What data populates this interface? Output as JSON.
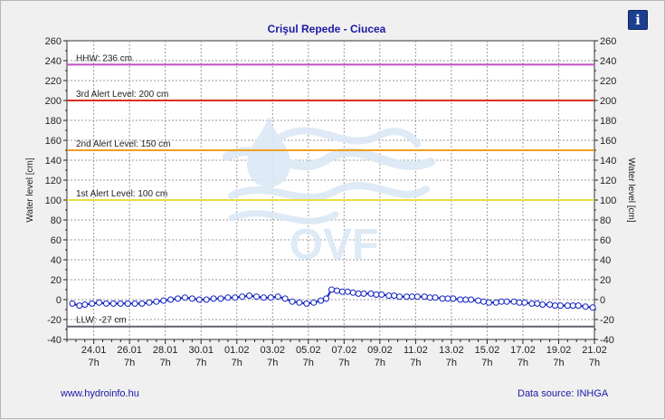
{
  "chart_data": {
    "type": "line",
    "title": "Crişul Repede - Ciucea",
    "ylabel": "Water level [cm]",
    "ylabel_right": "Water level [cm]",
    "ylim": [
      -40,
      260
    ],
    "yticks": [
      -40,
      -20,
      0,
      20,
      40,
      60,
      80,
      100,
      120,
      140,
      160,
      180,
      200,
      220,
      240,
      260
    ],
    "xlim": [
      0,
      29.5
    ],
    "x_ticks": [
      {
        "x": 1.5,
        "date": "24.01",
        "hour": "7h"
      },
      {
        "x": 3.5,
        "date": "26.01",
        "hour": "7h"
      },
      {
        "x": 5.5,
        "date": "28.01",
        "hour": "7h"
      },
      {
        "x": 7.5,
        "date": "30.01",
        "hour": "7h"
      },
      {
        "x": 9.5,
        "date": "01.02",
        "hour": "7h"
      },
      {
        "x": 11.5,
        "date": "03.02",
        "hour": "7h"
      },
      {
        "x": 13.5,
        "date": "05.02",
        "hour": "7h"
      },
      {
        "x": 15.5,
        "date": "07.02",
        "hour": "7h"
      },
      {
        "x": 17.5,
        "date": "09.02",
        "hour": "7h"
      },
      {
        "x": 19.5,
        "date": "11.02",
        "hour": "7h"
      },
      {
        "x": 21.5,
        "date": "13.02",
        "hour": "7h"
      },
      {
        "x": 23.5,
        "date": "15.02",
        "hour": "7h"
      },
      {
        "x": 25.5,
        "date": "17.02",
        "hour": "7h"
      },
      {
        "x": 27.5,
        "date": "19.02",
        "hour": "7h"
      },
      {
        "x": 29.5,
        "date": "21.02",
        "hour": "7h"
      }
    ],
    "reference_lines": [
      {
        "value": 236,
        "label": "HHW: 236 cm",
        "color": "#c050c0"
      },
      {
        "value": 200,
        "label": "3rd Alert Level: 200 cm",
        "color": "#d83020"
      },
      {
        "value": 150,
        "label": "2nd Alert Level: 150 cm",
        "color": "#f0a020"
      },
      {
        "value": 100,
        "label": "1st Alert Level: 100 cm",
        "color": "#e8e040"
      },
      {
        "value": -27,
        "label": "LLW: -27 cm",
        "color": "#606070"
      }
    ],
    "series": [
      {
        "color": "#1020c0",
        "x": [
          0.3,
          0.7,
          1.0,
          1.4,
          1.8,
          2.2,
          2.6,
          3.0,
          3.4,
          3.8,
          4.2,
          4.6,
          5.0,
          5.4,
          5.8,
          6.2,
          6.6,
          7.0,
          7.4,
          7.8,
          8.2,
          8.6,
          9.0,
          9.4,
          9.8,
          10.2,
          10.6,
          11.0,
          11.4,
          11.8,
          12.2,
          12.6,
          13.0,
          13.4,
          13.8,
          14.2,
          14.5,
          14.8,
          15.1,
          15.4,
          15.7,
          16.0,
          16.3,
          16.6,
          17.0,
          17.3,
          17.6,
          18.0,
          18.3,
          18.6,
          19.0,
          19.3,
          19.6,
          20.0,
          20.3,
          20.6,
          21.0,
          21.3,
          21.6,
          22.0,
          22.3,
          22.6,
          23.0,
          23.3,
          23.6,
          24.0,
          24.3,
          24.6,
          25.0,
          25.3,
          25.6,
          26.0,
          26.3,
          26.6,
          27.0,
          27.3,
          27.6,
          28.0,
          28.3,
          28.6,
          29.0,
          29.4
        ],
        "values": [
          -4,
          -6,
          -5,
          -4,
          -3,
          -4,
          -4,
          -4,
          -4,
          -4,
          -4,
          -3,
          -2,
          -1,
          0,
          1,
          2,
          1,
          0,
          0,
          1,
          1,
          2,
          2,
          3,
          4,
          3,
          2,
          2,
          3,
          1,
          -2,
          -3,
          -4,
          -3,
          -1,
          1,
          10,
          9,
          8,
          8,
          7,
          6,
          6,
          6,
          5,
          5,
          4,
          4,
          3,
          3,
          3,
          3,
          3,
          2,
          2,
          1,
          1,
          1,
          0,
          0,
          0,
          -1,
          -2,
          -3,
          -3,
          -2,
          -2,
          -2,
          -3,
          -3,
          -4,
          -4,
          -5,
          -5,
          -6,
          -6,
          -6,
          -6,
          -6,
          -7,
          -8
        ]
      }
    ]
  },
  "watermark": {
    "text": "OVF"
  },
  "footer": {
    "website": "www.hydroinfo.hu",
    "source": "Data source: INHGA"
  },
  "info_button": {
    "label": "i",
    "icon": "info-icon"
  }
}
